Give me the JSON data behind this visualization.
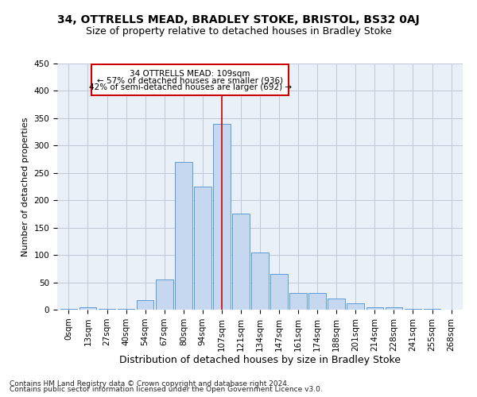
{
  "title": "34, OTTRELLS MEAD, BRADLEY STOKE, BRISTOL, BS32 0AJ",
  "subtitle": "Size of property relative to detached houses in Bradley Stoke",
  "xlabel": "Distribution of detached houses by size in Bradley Stoke",
  "ylabel": "Number of detached properties",
  "footer_line1": "Contains HM Land Registry data © Crown copyright and database right 2024.",
  "footer_line2": "Contains public sector information licensed under the Open Government Licence v3.0.",
  "bar_labels": [
    "0sqm",
    "13sqm",
    "27sqm",
    "40sqm",
    "54sqm",
    "67sqm",
    "80sqm",
    "94sqm",
    "107sqm",
    "121sqm",
    "134sqm",
    "147sqm",
    "161sqm",
    "174sqm",
    "188sqm",
    "201sqm",
    "214sqm",
    "228sqm",
    "241sqm",
    "255sqm",
    "268sqm"
  ],
  "bar_values": [
    2,
    5,
    2,
    2,
    18,
    55,
    270,
    225,
    340,
    175,
    105,
    65,
    30,
    30,
    20,
    12,
    5,
    5,
    2,
    2,
    0
  ],
  "bar_color": "#c5d8f0",
  "bar_edge_color": "#5b9bd5",
  "grid_color": "#c0c8d8",
  "background_color": "#eaf0f8",
  "vline_x_index": 8,
  "vline_color": "#cc0000",
  "annotation_title": "34 OTTRELLS MEAD: 109sqm",
  "annotation_line1": "← 57% of detached houses are smaller (936)",
  "annotation_line2": "42% of semi-detached houses are larger (692) →",
  "annotation_box_color": "#cc0000",
  "ylim": [
    0,
    450
  ],
  "yticks": [
    0,
    50,
    100,
    150,
    200,
    250,
    300,
    350,
    400,
    450
  ],
  "title_fontsize": 10,
  "subtitle_fontsize": 9,
  "xlabel_fontsize": 9,
  "ylabel_fontsize": 8,
  "tick_fontsize": 7.5,
  "annotation_fontsize": 7.5,
  "footer_fontsize": 6.5
}
